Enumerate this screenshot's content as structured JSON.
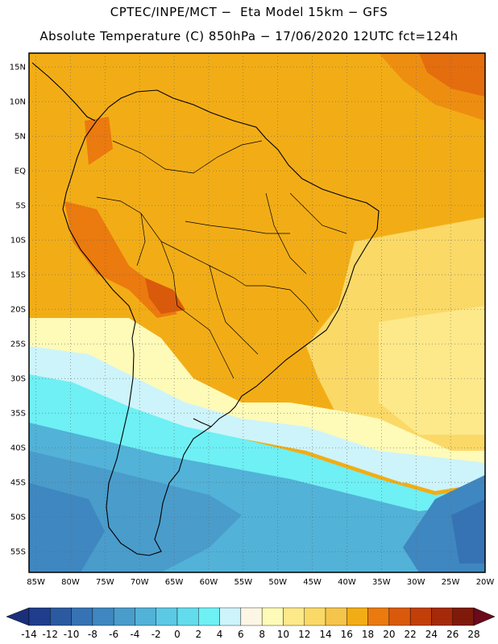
{
  "header": {
    "line1": "CPTEC/INPE/MCT −  Eta Model 15km − GFS",
    "line2": "Absolute Temperature (C) 850hPa − 17/06/2020 12UTC fct=124h"
  },
  "map": {
    "lat_labels": [
      "15N",
      "10N",
      "5N",
      "EQ",
      "5S",
      "10S",
      "15S",
      "20S",
      "25S",
      "30S",
      "35S",
      "40S",
      "45S",
      "50S",
      "55S"
    ],
    "lon_labels": [
      "85W",
      "80W",
      "75W",
      "70W",
      "65W",
      "60W",
      "55W",
      "50W",
      "45W",
      "40W",
      "35W",
      "30W",
      "25W",
      "20W"
    ],
    "extent": {
      "lon_min": -86,
      "lon_max": -20,
      "lat_min": -58,
      "lat_max": 17
    },
    "grid": true
  },
  "colorbar": {
    "labels": [
      "-14",
      "-12",
      "-10",
      "-8",
      "-6",
      "-4",
      "-2",
      "0",
      "2",
      "4",
      "6",
      "8",
      "10",
      "12",
      "14",
      "16",
      "18",
      "20",
      "22",
      "24",
      "26",
      "28"
    ],
    "colors": [
      "#1f3d8c",
      "#2b5aa0",
      "#3673b4",
      "#3f87c0",
      "#4a9ccb",
      "#52b2d8",
      "#5cc9e4",
      "#62dcec",
      "#6ef0f4",
      "#cdf4fa",
      "#fdf6e4",
      "#fefab8",
      "#fde98a",
      "#fbd967",
      "#f5c44a",
      "#f2ad16",
      "#eb7a0f",
      "#da5a0c",
      "#c23f0a",
      "#a52a0a",
      "#7e1a0a"
    ],
    "under_color": "#1a2f7a",
    "over_color": "#6b0a1a"
  }
}
